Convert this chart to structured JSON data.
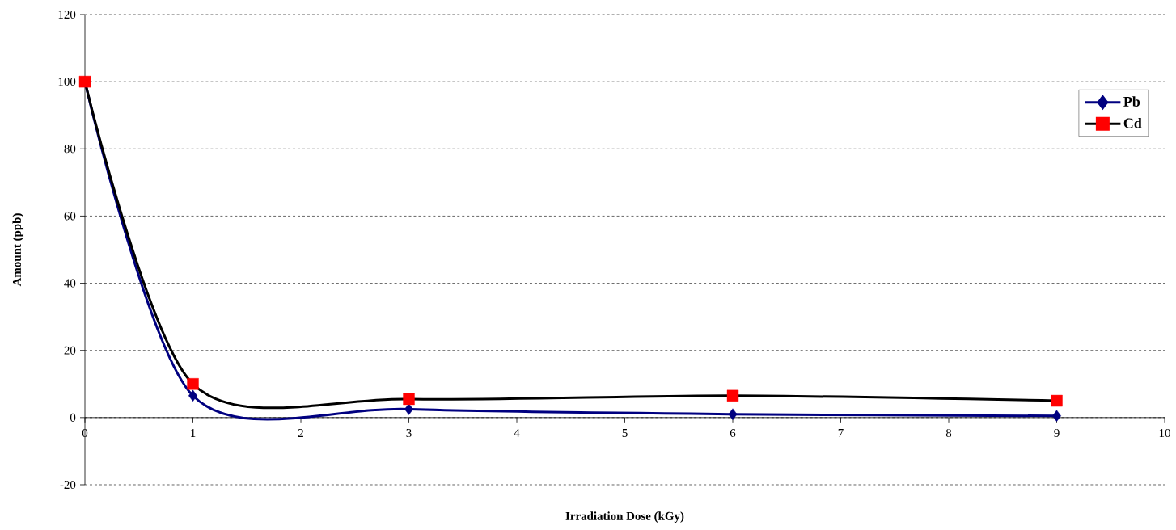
{
  "chart_data": {
    "type": "line",
    "xlabel": "Irradiation Dose (kGy)",
    "ylabel": "Amount (ppb)",
    "x": [
      0,
      1,
      3,
      6,
      9
    ],
    "series": [
      {
        "name": "Pb",
        "color": "#000080",
        "marker": "diamond",
        "values": [
          100,
          6.5,
          2.5,
          1,
          0.5
        ]
      },
      {
        "name": "Cd",
        "color": "#000000",
        "marker": "square",
        "colors": [
          "#ff0000",
          "#ff0000",
          "#ff0000",
          "#ff0000",
          "#ff0000"
        ],
        "values": [
          100,
          10,
          5.5,
          6.5,
          5
        ]
      }
    ],
    "xlim": [
      0,
      10
    ],
    "xticks": [
      0,
      1,
      2,
      3,
      4,
      5,
      6,
      7,
      8,
      9,
      10
    ],
    "ylim": [
      -20,
      120
    ],
    "yticks": [
      -20,
      0,
      20,
      40,
      60,
      80,
      100,
      120
    ],
    "grid": "y",
    "legend": "top right",
    "line_style": "solid"
  }
}
